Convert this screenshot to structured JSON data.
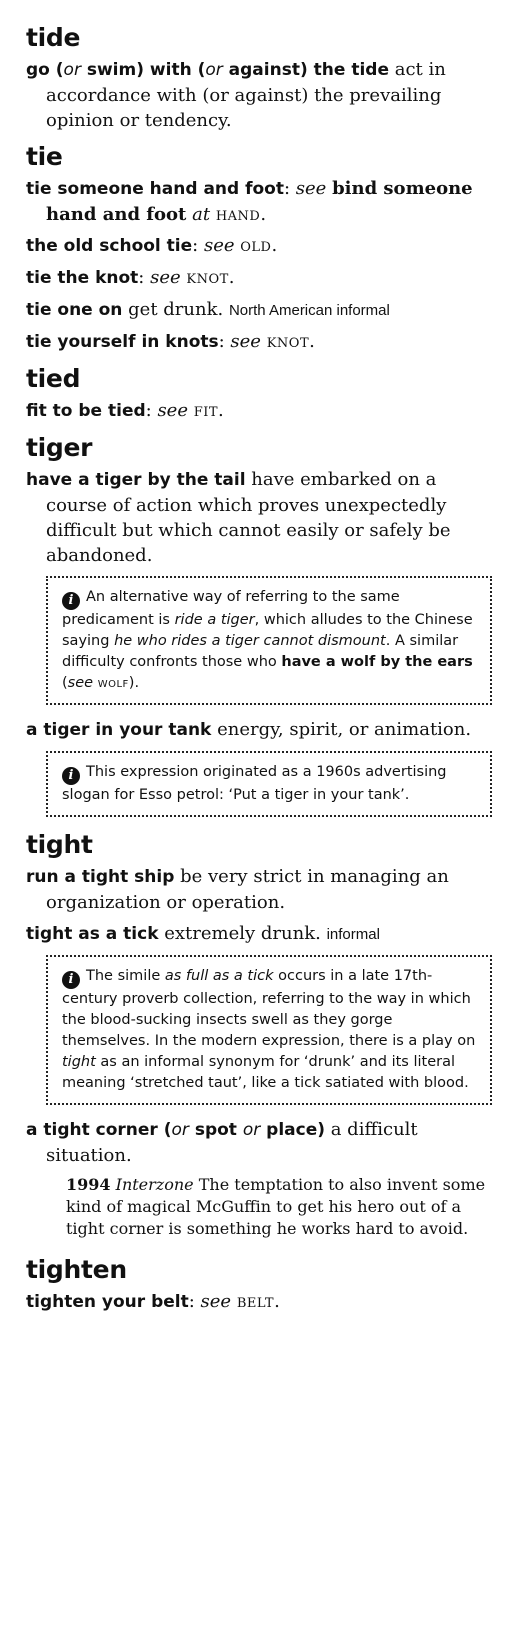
{
  "entries": [
    {
      "headword": "tide",
      "senses": [
        {
          "p1": "go (",
          "or1": "or",
          "p2": " swim) with (",
          "or2": "or",
          "p3": " against) the tide",
          "def": " act in accordance with (or against) the prevailing opinion or tendency."
        }
      ]
    },
    {
      "headword": "tie",
      "senses": [
        {
          "phrase": "tie someone hand and foot",
          "see": "see",
          "target_bold": "bind someone hand and foot",
          "at": "at",
          "xref": "hand",
          "end": "."
        },
        {
          "phrase": "the old school tie",
          "see": "see",
          "xref": "old",
          "end": "."
        },
        {
          "phrase": "tie the knot",
          "see": "see",
          "xref": "knot",
          "end": "."
        },
        {
          "phrase": "tie one on",
          "def": " get drunk.",
          "label": "North American informal"
        },
        {
          "phrase": "tie yourself in knots",
          "see": "see",
          "xref": "knot",
          "end": "."
        }
      ]
    },
    {
      "headword": "tied",
      "senses": [
        {
          "phrase": "fit to be tied",
          "see": "see",
          "xref": "fit",
          "end": "."
        }
      ]
    },
    {
      "headword": "tiger",
      "senses": [
        {
          "phrase": "have a tiger by the tail",
          "def": " have embarked on a course of action which proves unexpectedly difficult but which cannot easily or safely be abandoned."
        },
        {
          "phrase": "a tiger in your tank",
          "def": " energy, spirit, or animation."
        }
      ],
      "notes": [
        {
          "t1": "An alternative way of referring to the same predicament is ",
          "i1": "ride a tiger",
          "t2": ", which alludes to the Chinese saying ",
          "i2": "he who rides a tiger cannot dismount",
          "t3": ". A similar difficulty confronts those who ",
          "b1": "have a wolf by the ears",
          "t4": " (",
          "i3": "see",
          "xref": "wolf",
          "t5": ")."
        },
        {
          "t1": "This expression originated as a 1960s advertising slogan for Esso petrol: ‘Put a tiger in your tank’."
        }
      ]
    },
    {
      "headword": "tight",
      "senses": [
        {
          "phrase": "run a tight ship",
          "def": " be very strict in managing an organization or operation."
        },
        {
          "phrase": "tight as a tick",
          "def": " extremely drunk.",
          "label": "informal"
        },
        {
          "p1": "a tight corner (",
          "or1": "or",
          "p2": " spot ",
          "or2": "or",
          "p3": " place)",
          "def": " a difficult situation."
        }
      ],
      "notes": [
        {
          "t1": "The simile ",
          "i1": "as full as a tick",
          "t2": " occurs in a late 17th-century proverb collection, referring to the way in which the blood-sucking insects swell as they gorge themselves. In the modern expression, there is a play on ",
          "i2": "tight",
          "t3": " as an informal synonym for ‘drunk’ and its literal meaning ‘stretched taut’, like a tick satiated with blood."
        }
      ],
      "quote": {
        "year": "1994",
        "source": "Interzone",
        "text": " The temptation to also invent some kind of magical McGuffin to get his hero out of a tight corner is something he works hard to avoid."
      }
    },
    {
      "headword": "tighten",
      "senses": [
        {
          "phrase": "tighten your belt",
          "see": "see",
          "xref": "belt",
          "end": "."
        }
      ]
    }
  ]
}
